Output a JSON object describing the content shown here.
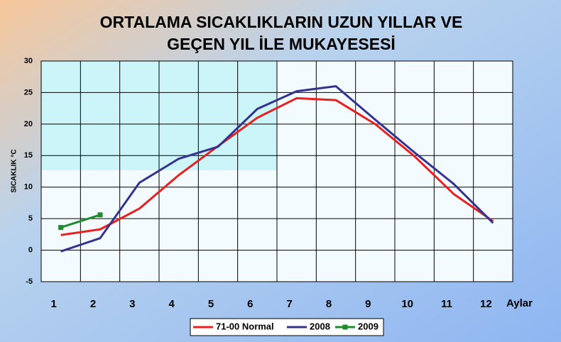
{
  "chart_data": {
    "type": "line",
    "title": [
      "ORTALAMA SICAKLIKLARIN UZUN YILLAR VE",
      "GEÇEN  YIL İLE MUKAYESESİ"
    ],
    "y_label": "SICAKLIK °C",
    "x_label": "Aylar",
    "categories": [
      "1",
      "2",
      "3",
      "4",
      "5",
      "6",
      "7",
      "8",
      "9",
      "10",
      "11",
      "12"
    ],
    "series": [
      {
        "name": "71-00 Normal",
        "color": "#e82020",
        "values": [
          2.4,
          3.3,
          6.6,
          11.9,
          16.5,
          21.0,
          24.1,
          23.8,
          20.0,
          14.9,
          8.9,
          4.6
        ]
      },
      {
        "name": "2008",
        "color": "#33338f",
        "values": [
          -0.2,
          1.9,
          10.7,
          14.5,
          16.4,
          22.4,
          25.2,
          26.0,
          20.7,
          15.5,
          10.5,
          4.3
        ]
      },
      {
        "name": "2009",
        "color": "#1c8c2c",
        "marker": "square",
        "values": [
          3.6,
          5.6,
          null,
          null,
          null,
          null,
          null,
          null,
          null,
          null,
          null,
          null
        ]
      }
    ],
    "ylim": [
      -5,
      30
    ],
    "yticks": [
      -5,
      0,
      5,
      10,
      15,
      20,
      25,
      30
    ],
    "grid": true
  }
}
